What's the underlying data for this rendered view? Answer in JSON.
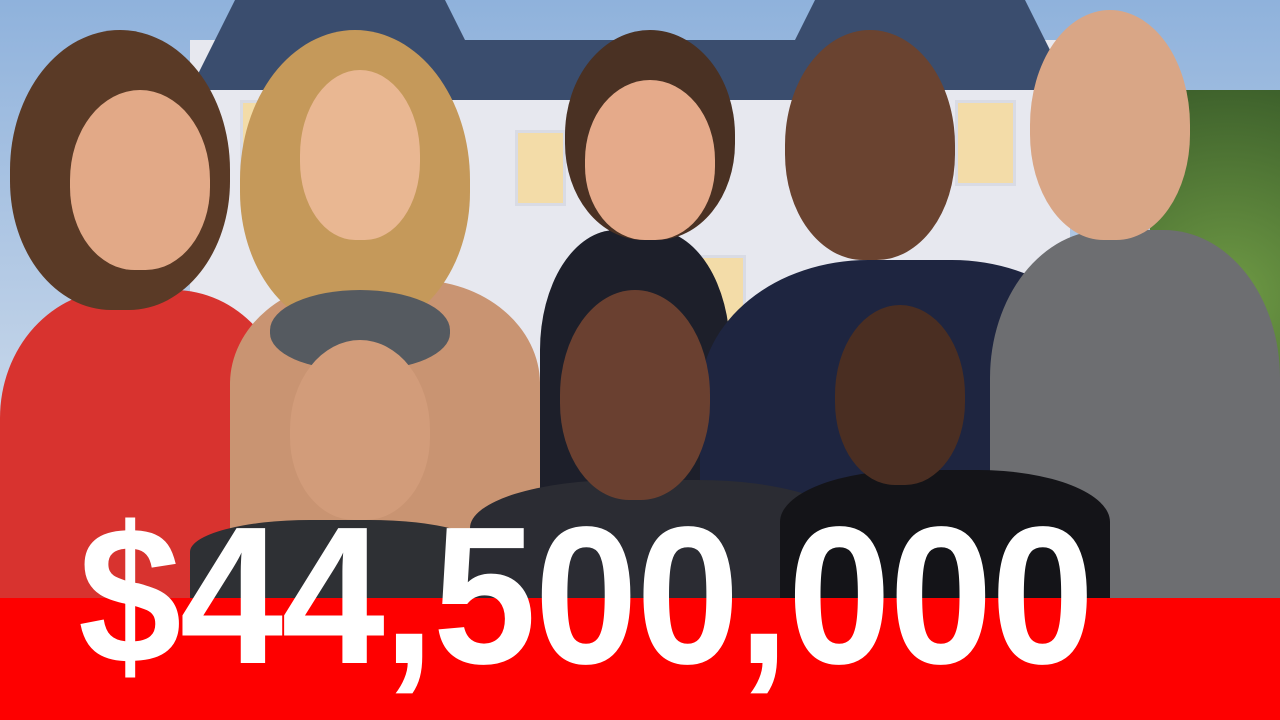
{
  "thumbnail": {
    "price_text": "$44,500,000",
    "colors": {
      "banner": "#fe0000",
      "text": "#ffffff",
      "roof": "#3a4d6e"
    }
  }
}
